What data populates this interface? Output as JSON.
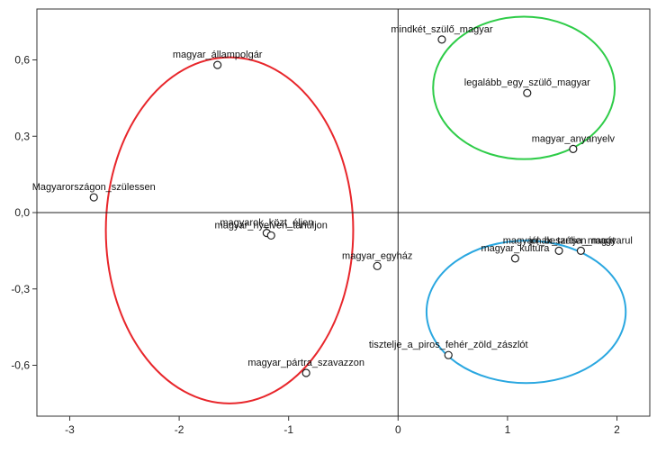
{
  "chart_data": {
    "type": "scatter",
    "title": "",
    "xlabel": "",
    "ylabel": "",
    "xlim": [
      -3.3,
      2.3
    ],
    "ylim": [
      -0.8,
      0.8
    ],
    "x_ticks": [
      -3,
      -2,
      -1,
      0,
      1,
      2
    ],
    "y_ticks": [
      0.6,
      0.3,
      0.0,
      -0.3,
      -0.6
    ],
    "x_tick_labels": [
      "-3",
      "-2",
      "-1",
      "0",
      "1",
      "2"
    ],
    "y_tick_labels": [
      "0,6",
      "0,3",
      "0,0",
      "-0,3",
      "-0,6"
    ],
    "grid": false,
    "reference_lines": {
      "x": 0,
      "y": 0
    },
    "points": [
      {
        "label": "mindkét_szülő_magyar",
        "x": 0.4,
        "y": 0.68
      },
      {
        "label": "legalább_egy_szülő_magyar",
        "x": 1.18,
        "y": 0.47
      },
      {
        "label": "magyar_anyanyelv",
        "x": 1.6,
        "y": 0.25
      },
      {
        "label": "magyar_állampolgár",
        "x": -1.65,
        "y": 0.58
      },
      {
        "label": "Magyarországon_szülessen",
        "x": -2.78,
        "y": 0.06
      },
      {
        "label": "magyarok_közt_éljen",
        "x": -1.2,
        "y": -0.08
      },
      {
        "label": "magyar_nyelven_tanuljon",
        "x": -1.16,
        "y": -0.09
      },
      {
        "label": "magyar_egyház",
        "x": -0.19,
        "y": -0.21
      },
      {
        "label": "jól_beszéljen_magyarul",
        "x": 1.67,
        "y": -0.15
      },
      {
        "label": "magyarnak_tartsa_magát",
        "x": 1.47,
        "y": -0.15
      },
      {
        "label": "magyar_kultúra",
        "x": 1.07,
        "y": -0.18
      },
      {
        "label": "tisztelje_a_piros_fehér_zöld_zászlót",
        "x": 0.46,
        "y": -0.56
      },
      {
        "label": "magyar_pártra_szavazzon",
        "x": -0.84,
        "y": -0.63
      }
    ],
    "clusters": [
      {
        "color": "#e8262b",
        "cx": -1.54,
        "cy": -0.07,
        "rx": 1.13,
        "ry": 0.68
      },
      {
        "color": "#2ecc48",
        "cx": 1.15,
        "cy": 0.49,
        "rx": 0.83,
        "ry": 0.28
      },
      {
        "color": "#2aa7e0",
        "cx": 1.17,
        "cy": -0.39,
        "rx": 0.91,
        "ry": 0.28
      }
    ]
  }
}
